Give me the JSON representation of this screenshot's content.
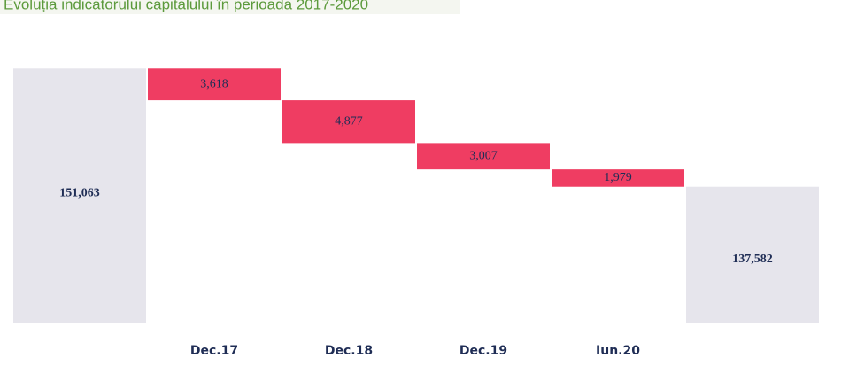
{
  "chart_data": {
    "type": "waterfall",
    "title": "Evoluția indicatorului capitalului în perioada 2017-2020",
    "categories": [
      null,
      "Dec.17",
      "Dec.18",
      "Dec.19",
      "Iun.20",
      null
    ],
    "values": [
      151063,
      3618,
      4877,
      3007,
      1979,
      137582
    ],
    "value_labels": [
      "151,063",
      "3,618",
      "4,877",
      "3,007",
      "1,979",
      "137,582"
    ],
    "measure": [
      "total",
      "decrease",
      "decrease",
      "decrease",
      "decrease",
      "total"
    ],
    "colors": {
      "total": "#e6e5ec",
      "decrease": "#ef3d62"
    },
    "ylim": [
      122000,
      152000
    ]
  }
}
